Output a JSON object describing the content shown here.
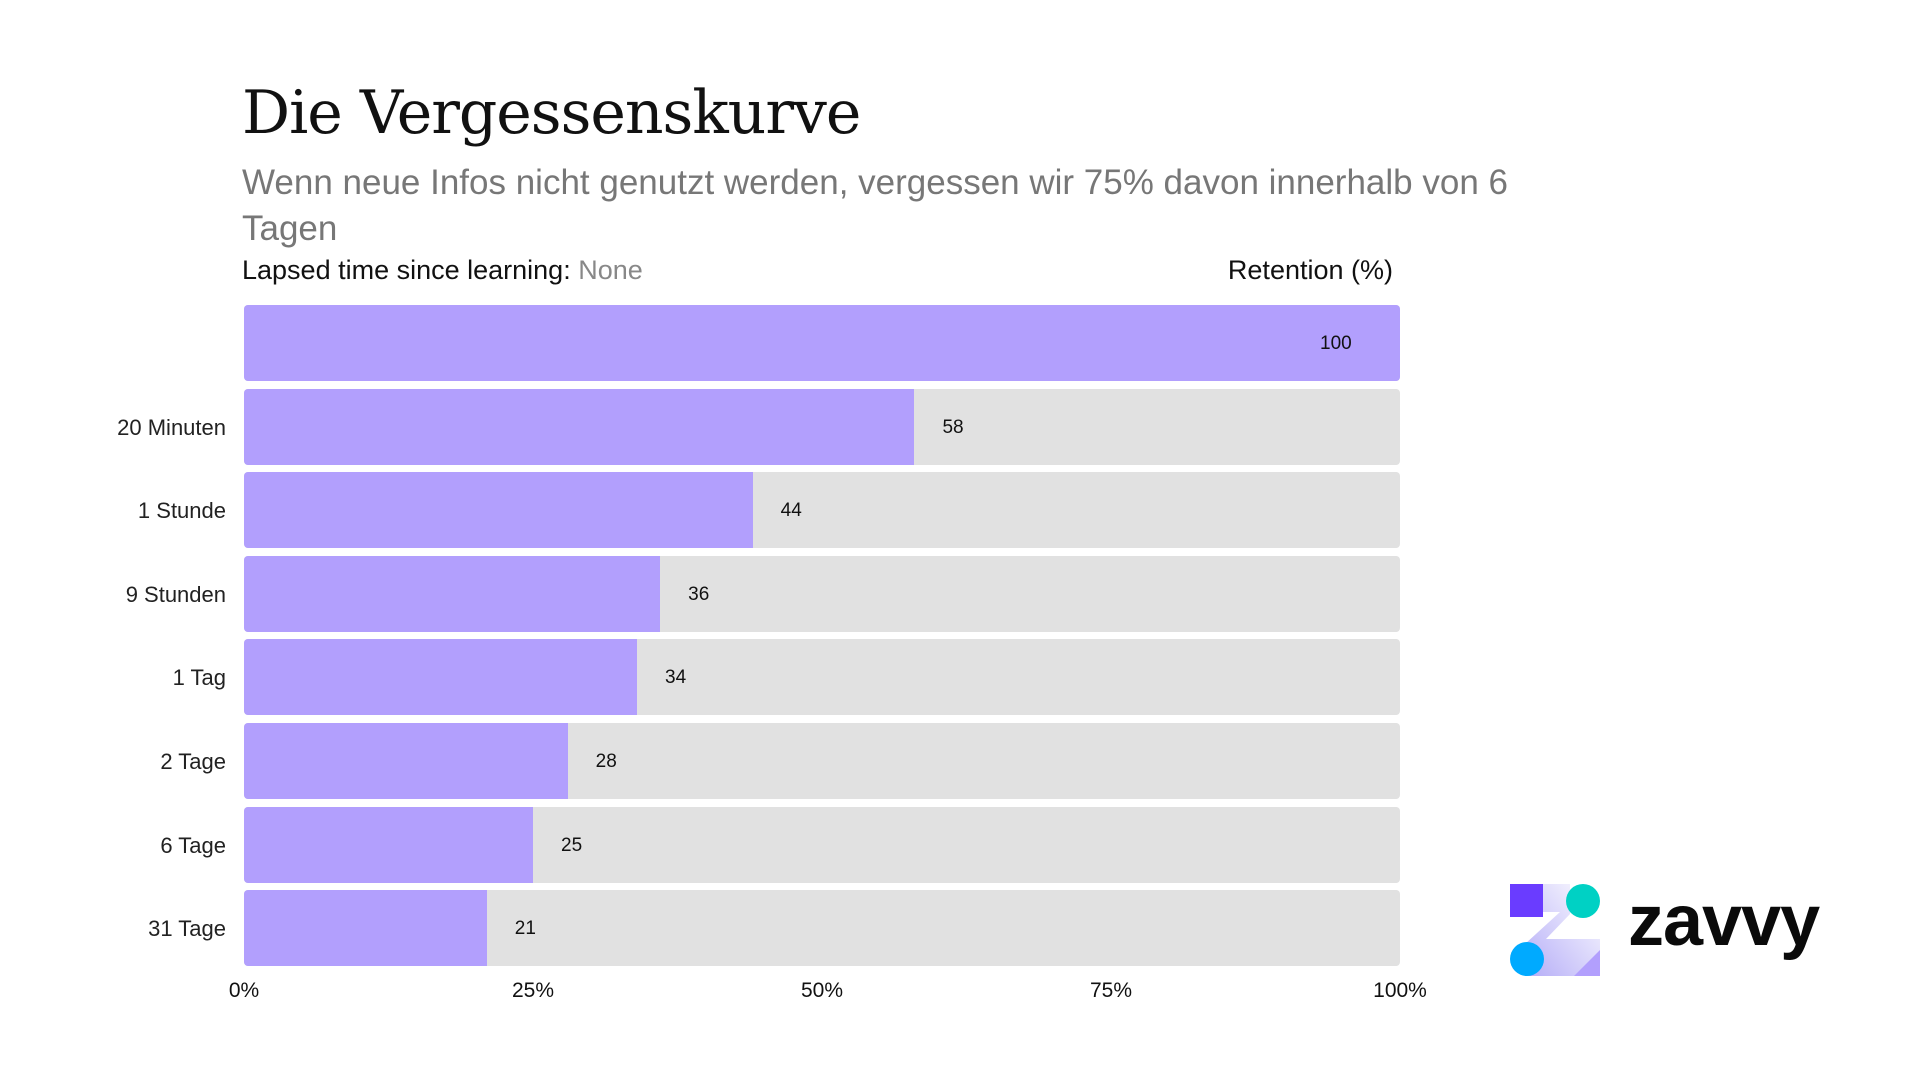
{
  "chart_data": {
    "type": "bar",
    "orientation": "horizontal",
    "title": "Die Vergessenskurve",
    "subtitle": "Wenn neue Infos nicht genutzt werden, vergessen wir 75% davon innerhalb von 6 Tagen",
    "category_header_label": "Lapsed time since learning:",
    "category_header_value": "None",
    "value_header": "Retention (%)",
    "categories": [
      "",
      "20 Minuten",
      "1 Stunde",
      "9 Stunden",
      "1 Tag",
      "2 Tage",
      "6 Tage",
      "31 Tage"
    ],
    "values": [
      100,
      58,
      44,
      36,
      34,
      28,
      25,
      21
    ],
    "value_labels": [
      "100",
      "58",
      "44",
      "36",
      "34",
      "28",
      "25",
      "21"
    ],
    "xlim": [
      0,
      100
    ],
    "x_ticks": [
      "0%",
      "25%",
      "50%",
      "75%",
      "100%"
    ],
    "grid": false,
    "colors": {
      "bar": "#b29ffd",
      "track": "#e1e1e1"
    }
  },
  "brand": {
    "name": "zavvy",
    "colors": {
      "square": "#6a3cff",
      "teal": "#00d1c4",
      "blue": "#00aaff",
      "violet": "#b29ffd"
    }
  }
}
